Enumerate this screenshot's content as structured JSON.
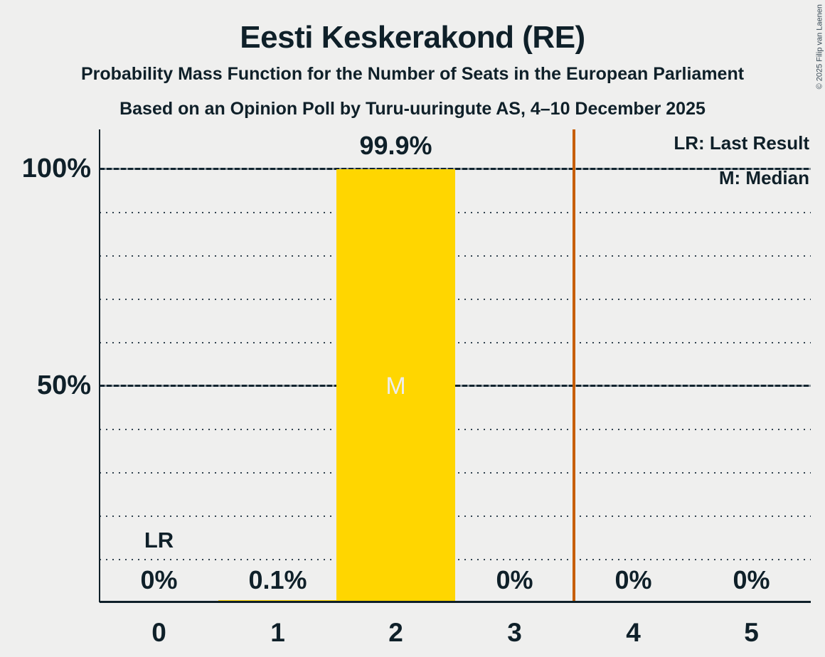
{
  "title": "Eesti Keskerakond (RE)",
  "subtitle": "Probability Mass Function for the Number of Seats in the European Parliament",
  "poll_info": "Based on an Opinion Poll by Turu-uuringute AS, 4–10 December 2025",
  "copyright": "© 2025 Filip van Laenen",
  "legend": {
    "lr": "LR: Last Result",
    "m": "M: Median"
  },
  "yaxis": {
    "t100": "100%",
    "t50": "50%"
  },
  "markers": {
    "lr_label": "LR",
    "median_label": "M"
  },
  "columns": [
    {
      "seat": "0",
      "value": "0%"
    },
    {
      "seat": "1",
      "value": "0.1%"
    },
    {
      "seat": "2",
      "value": "99.9%"
    },
    {
      "seat": "3",
      "value": "0%"
    },
    {
      "seat": "4",
      "value": "0%"
    },
    {
      "seat": "5",
      "value": "0%"
    }
  ],
  "chart_data": {
    "type": "bar",
    "title": "Eesti Keskerakond (RE)",
    "subtitle": "Probability Mass Function for the Number of Seats in the European Parliament",
    "annotation": "Based on an Opinion Poll by Turu-uuringute AS, 4–10 December 2025",
    "categories": [
      "0",
      "1",
      "2",
      "3",
      "4",
      "5"
    ],
    "values": [
      0,
      0.1,
      99.9,
      0,
      0,
      0
    ],
    "value_labels": [
      "0%",
      "0.1%",
      "99.9%",
      "0%",
      "0%",
      "0%"
    ],
    "xlabel": "",
    "ylabel": "",
    "ylim": [
      0,
      105
    ],
    "ytick_labels": [
      "50%",
      "100%"
    ],
    "grid": "dotted horizontal lines every 10%, denser dashed lines at 50% and 100%",
    "legend": [
      "LR: Last Result",
      "M: Median"
    ],
    "legend_position": "top-right",
    "median_seats": 2,
    "last_result_seats": 0,
    "majority_line_x": 3.5,
    "colors": {
      "bar": "#FFD600",
      "majority_line": "#C75E00",
      "text": "#0F2029",
      "background": "#EFEFEE",
      "median_letter": "#EDEDED"
    }
  }
}
